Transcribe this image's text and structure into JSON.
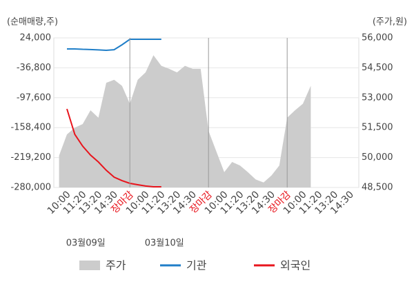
{
  "chart_data": {
    "type": "line",
    "y_axis_label": "(순매매량,주)",
    "y2_axis_label": "(주가,원)",
    "categories": [
      null,
      "10:00",
      null,
      "11:20",
      null,
      "13:20",
      null,
      "14:30",
      null,
      "장마감",
      null,
      "10:00",
      null,
      "11:20",
      null,
      "13:20",
      null,
      "14:30",
      null,
      "장마감",
      null,
      "10:00",
      null,
      "11:20",
      null,
      "13:20",
      null,
      "14:30",
      null,
      "장마감",
      null,
      "10:00",
      null,
      "11:20",
      null,
      "13:20",
      null,
      "14:30"
    ],
    "highlight_label": "장마감",
    "highlight_color": "#e8141c",
    "dates": [
      {
        "label": "03월09일",
        "index": 4
      },
      {
        "label": "03월10일",
        "index": 14
      }
    ],
    "series": [
      {
        "name": "주가",
        "kind": "area",
        "axis": "y2",
        "color": "#cccccc",
        "values": [
          50100,
          51160,
          51500,
          51680,
          52370,
          52000,
          53750,
          53900,
          53600,
          52700,
          53900,
          54270,
          55130,
          54600,
          54450,
          54270,
          54600,
          54450,
          54450,
          51340,
          50300,
          49270,
          49780,
          49600,
          49270,
          48900,
          48750,
          49100,
          49600,
          52000,
          52370,
          52700,
          53600,
          null,
          null,
          null,
          null,
          null
        ]
      },
      {
        "name": "기관",
        "color": "#1f7ec8",
        "values": [
          null,
          1600,
          1600,
          800,
          400,
          -400,
          -1200,
          0,
          10000,
          21200,
          21200,
          21200,
          21200,
          21200,
          null,
          null,
          null,
          null,
          null,
          null,
          null,
          null,
          null,
          null,
          null,
          null,
          null,
          null,
          null,
          null,
          null,
          null,
          null,
          null,
          null,
          null,
          null,
          null
        ]
      },
      {
        "name": "외국인",
        "color": "#e8141c",
        "values": [
          null,
          -120300,
          -172000,
          -196000,
          -214200,
          -228200,
          -245000,
          -259000,
          -266000,
          -271600,
          -274400,
          -277000,
          -278600,
          -278600,
          null,
          null,
          null,
          null,
          null,
          null,
          null,
          null,
          null,
          null,
          null,
          null,
          null,
          null,
          null,
          null,
          null,
          null,
          null,
          null,
          null,
          null,
          null,
          null
        ]
      }
    ],
    "ylim": [
      -280000,
      24000
    ],
    "yticks": [
      {
        "value": 24000,
        "label": "24,000"
      },
      {
        "value": -36800,
        "label": "-36,800"
      },
      {
        "value": -97600,
        "label": "-97,600"
      },
      {
        "value": -158400,
        "label": "-158,400"
      },
      {
        "value": -219200,
        "label": "-219,200"
      },
      {
        "value": -280000,
        "label": "-280,000"
      }
    ],
    "y2lim": [
      48500,
      56000
    ],
    "y2ticks": [
      {
        "value": 56000,
        "label": "56,000"
      },
      {
        "value": 54500,
        "label": "54,500"
      },
      {
        "value": 53000,
        "label": "53,000"
      },
      {
        "value": 51500,
        "label": "51,500"
      },
      {
        "value": 50000,
        "label": "50,000"
      },
      {
        "value": 48500,
        "label": "48,500"
      }
    ],
    "grid": true
  }
}
